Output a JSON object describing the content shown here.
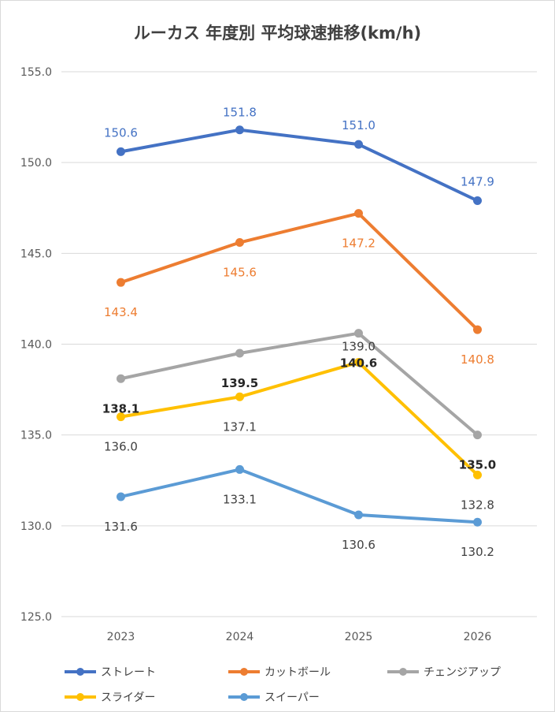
{
  "chart_data": {
    "type": "line",
    "title": "ルーカス 年度別 平均球速推移(km/h)",
    "categories": [
      "2023",
      "2024",
      "2025",
      "2026"
    ],
    "y_ticks": [
      "125.0",
      "130.0",
      "135.0",
      "140.0",
      "145.0",
      "150.0",
      "155.0"
    ],
    "ylim": [
      125,
      155
    ],
    "grid": true,
    "legend_position": "bottom",
    "series": [
      {
        "name": "ストレート",
        "color": "#4472C4",
        "values": [
          150.6,
          151.8,
          151.0,
          147.9
        ],
        "labels": [
          "150.6",
          "151.8",
          "151.0",
          "147.9"
        ],
        "label_color": "#4472C4",
        "label_bold": false
      },
      {
        "name": "カットボール",
        "color": "#ED7D31",
        "values": [
          143.4,
          145.6,
          147.2,
          140.8
        ],
        "labels": [
          "143.4",
          "145.6",
          "147.2",
          "140.8"
        ],
        "label_color": "#ED7D31",
        "label_bold": false
      },
      {
        "name": "チェンジアップ",
        "color": "#A5A5A5",
        "values": [
          138.1,
          139.5,
          140.6,
          135.0
        ],
        "labels": [
          "138.1",
          "139.5",
          "140.6",
          "135.0"
        ],
        "label_color": "#262626",
        "label_bold": true
      },
      {
        "name": "スライダー",
        "color": "#FFC000",
        "values": [
          136.0,
          137.1,
          139.0,
          132.8
        ],
        "labels": [
          "136.0",
          "137.1",
          "139.0",
          "132.8"
        ],
        "label_color": "#404040",
        "label_bold": false
      },
      {
        "name": "スイーパー",
        "color": "#5B9BD5",
        "values": [
          131.6,
          133.1,
          130.6,
          130.2
        ],
        "labels": [
          "131.6",
          "133.1",
          "130.6",
          "130.2"
        ],
        "label_color": "#404040",
        "label_bold": false
      }
    ]
  }
}
